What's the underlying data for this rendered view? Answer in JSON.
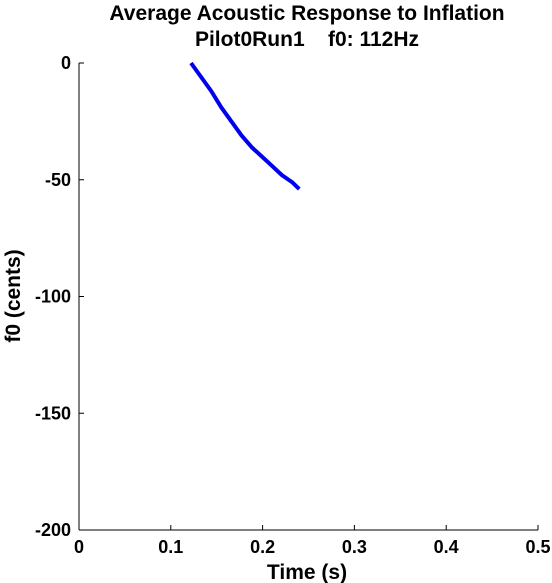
{
  "chart_data": {
    "type": "line",
    "title_line1": "Average Acoustic Response to Inflation",
    "title_line2": "Pilot0Run1    f0: 112Hz",
    "xlabel": "Time (s)",
    "ylabel": "f0 (cents)",
    "xlim": [
      0,
      0.5
    ],
    "ylim": [
      -200,
      0
    ],
    "xticks": [
      0,
      0.1,
      0.2,
      0.3,
      0.4,
      0.5
    ],
    "xtick_labels": [
      "0",
      "0.1",
      "0.2",
      "0.3",
      "0.4",
      "0.5"
    ],
    "yticks": [
      0,
      -50,
      -100,
      -150,
      -200
    ],
    "ytick_labels": [
      "0",
      "-50",
      "-100",
      "-150",
      "-200"
    ],
    "grid": false,
    "series": [
      {
        "color": "#0000ee",
        "x": [
          0.122,
          0.133,
          0.144,
          0.155,
          0.166,
          0.177,
          0.188,
          0.199,
          0.21,
          0.221,
          0.232,
          0.24
        ],
        "y": [
          0,
          -6,
          -12,
          -19,
          -25,
          -31,
          -36,
          -40,
          -44,
          -48,
          -51,
          -54
        ]
      }
    ]
  }
}
